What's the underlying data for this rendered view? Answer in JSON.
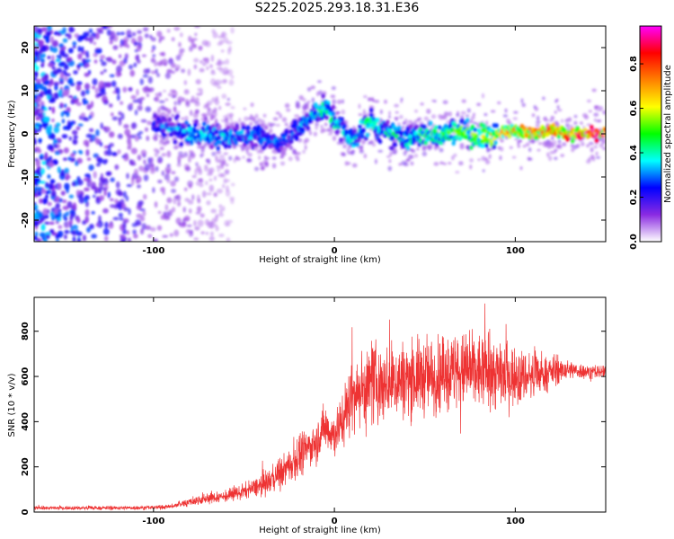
{
  "title": "S225.2025.293.18.31.E36",
  "chart_data": [
    {
      "type": "heatmap",
      "xlabel": "Height of straight line (km)",
      "ylabel": "Frequency (Hz)",
      "xlim": [
        -166,
        150
      ],
      "ylim": [
        -25,
        25
      ],
      "x_ticks": [
        "-100",
        "0",
        "100"
      ],
      "y_ticks": [
        "-20",
        "-10",
        "0",
        "10",
        "20"
      ],
      "colorbar": {
        "label": "Normalized spectral amplitude",
        "range": [
          0.0,
          0.97
        ],
        "ticks": [
          "0.0",
          "0.2",
          "0.4",
          "0.6",
          "0.8"
        ],
        "colors": [
          "#ffffff",
          "#8a2be2",
          "#0000ff",
          "#00ffff",
          "#00ff00",
          "#ffff00",
          "#ff8000",
          "#ff0000",
          "#ff00ff"
        ]
      },
      "ridge": {
        "x": [
          -100,
          -90,
          -80,
          -70,
          -60,
          -50,
          -40,
          -30,
          -20,
          -10,
          -5,
          0,
          5,
          10,
          15,
          20,
          25,
          30,
          40,
          50,
          60,
          70,
          80,
          90,
          100,
          110,
          120,
          130,
          140,
          150
        ],
        "y": [
          2,
          1,
          0,
          0,
          -1,
          0,
          -1,
          -2,
          1,
          5,
          6,
          3,
          1,
          -2,
          1,
          3,
          1,
          0,
          -1,
          0,
          0,
          1,
          -1,
          0,
          1,
          0,
          1,
          0,
          0,
          0
        ],
        "amplitude": [
          0.3,
          0.35,
          0.4,
          0.4,
          0.4,
          0.35,
          0.35,
          0.3,
          0.35,
          0.45,
          0.45,
          0.45,
          0.4,
          0.4,
          0.45,
          0.5,
          0.45,
          0.45,
          0.45,
          0.5,
          0.5,
          0.55,
          0.6,
          0.65,
          0.8,
          0.75,
          0.8,
          0.85,
          0.9,
          0.9
        ]
      }
    },
    {
      "type": "line",
      "xlabel": "Height of straight line (km)",
      "ylabel": "SNR (10 * v/v)",
      "xlim": [
        -166,
        150
      ],
      "ylim": [
        0,
        950
      ],
      "x_ticks": [
        "-100",
        "0",
        "100"
      ],
      "y_ticks": [
        "0",
        "200",
        "400",
        "600",
        "800"
      ],
      "color": "#ee3333",
      "envelope": {
        "x": [
          -166,
          -120,
          -100,
          -90,
          -80,
          -70,
          -60,
          -50,
          -40,
          -30,
          -20,
          -10,
          -5,
          0,
          5,
          10,
          20,
          30,
          40,
          50,
          60,
          70,
          80,
          90,
          100,
          110,
          120,
          130,
          140,
          150
        ],
        "mean": [
          18,
          18,
          20,
          25,
          45,
          60,
          70,
          90,
          120,
          170,
          240,
          320,
          380,
          340,
          420,
          520,
          560,
          580,
          590,
          600,
          610,
          620,
          620,
          610,
          600,
          600,
          620,
          630,
          620,
          620
        ],
        "spread": [
          12,
          12,
          14,
          15,
          30,
          35,
          40,
          50,
          70,
          100,
          130,
          150,
          160,
          150,
          200,
          250,
          270,
          270,
          260,
          260,
          250,
          260,
          260,
          250,
          200,
          150,
          100,
          60,
          50,
          50
        ]
      }
    }
  ]
}
